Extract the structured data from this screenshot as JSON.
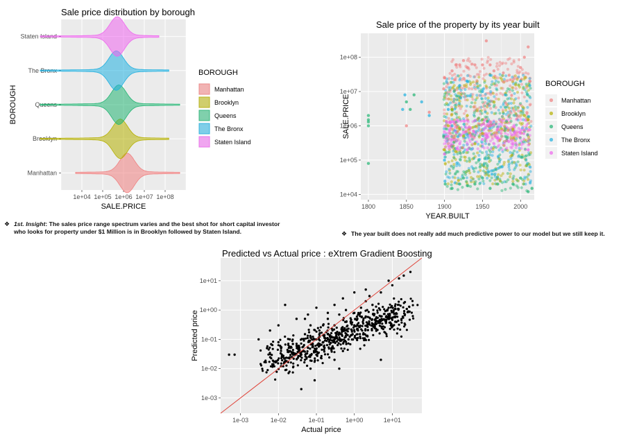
{
  "colors": {
    "Manhattan": "#f08080",
    "Brooklyn": "#b5b000",
    "Queens": "#22b573",
    "The Bronx": "#20b0e0",
    "Staten Island": "#ee66ee",
    "panel_bg": "#ebebeb",
    "line": "#e0443a"
  },
  "chart_data": [
    {
      "type": "violin",
      "title": "Sale price distribution by borough",
      "xlabel": "SALE.PRICE",
      "ylabel": "BOROUGH",
      "x_scale": "log10",
      "xlim": [
        1000,
        1000000000
      ],
      "x_ticks": [
        "1e+04",
        "1e+05",
        "1e+06",
        "1e+07",
        "1e+08"
      ],
      "categories": [
        "Manhattan",
        "Brooklyn",
        "Queens",
        "The Bronx",
        "Staten Island"
      ],
      "legend_title": "BOROUGH",
      "legend": [
        "Manhattan",
        "Brooklyn",
        "Queens",
        "The Bronx",
        "Staten Island"
      ],
      "legend_position": "right",
      "series": [
        {
          "name": "Manhattan",
          "range": [
            5000,
            500000000
          ],
          "peak": 1500000
        },
        {
          "name": "Brooklyn",
          "range": [
            100,
            150000000
          ],
          "peak": 700000
        },
        {
          "name": "Queens",
          "range": [
            100,
            500000000
          ],
          "peak": 600000
        },
        {
          "name": "The Bronx",
          "range": [
            100,
            150000000
          ],
          "peak": 450000
        },
        {
          "name": "Staten Island",
          "range": [
            100,
            50000000
          ],
          "peak": 500000
        }
      ]
    },
    {
      "type": "scatter",
      "title": "Sale price of the property by its year built",
      "xlabel": "YEAR.BUILT",
      "ylabel": "SALE.PRICE",
      "y_scale": "log10",
      "xlim": [
        1790,
        2018
      ],
      "ylim": [
        7000,
        500000000
      ],
      "x_ticks": [
        "1800",
        "1850",
        "1900",
        "1950",
        "2000"
      ],
      "y_ticks": [
        "1e+04",
        "1e+05",
        "1e+06",
        "1e+07",
        "1e+08"
      ],
      "legend_title": "BOROUGH",
      "legend": [
        "Manhattan",
        "Brooklyn",
        "Queens",
        "The Bronx",
        "Staten Island"
      ],
      "legend_position": "right",
      "series": [
        {
          "name": "Manhattan",
          "x": [
            1850,
            1880,
            1899,
            1900,
            1910,
            1915,
            1920,
            1925,
            1930,
            1940,
            1950,
            1955,
            1960,
            1965,
            1985,
            2000,
            2005,
            2010,
            2012
          ],
          "y": [
            1000000,
            2500000,
            12000000,
            25000000,
            40000000,
            60000000,
            60000000,
            80000000,
            50000000,
            60000000,
            60000000,
            300000000,
            60000000,
            40000000,
            30000000,
            50000000,
            100000000,
            200000000,
            20000000
          ]
        },
        {
          "name": "Brooklyn",
          "x": [
            1900,
            1905,
            1910,
            1920,
            1925,
            1930,
            1940,
            1950,
            1960,
            1990,
            2005,
            2010
          ],
          "y": [
            200000,
            1000000,
            3000000,
            800000,
            500000,
            2000000,
            300000,
            600000,
            1000000,
            800000,
            2000000,
            1500000
          ]
        },
        {
          "name": "Queens",
          "x": [
            1800,
            1800,
            1800,
            1800,
            1800,
            1850,
            1855,
            1860,
            1899,
            1901,
            1910,
            1920,
            1925,
            1930,
            1940,
            1950,
            1960,
            1970,
            1990,
            2000,
            2010,
            2015
          ],
          "y": [
            80000,
            1000000,
            1500000,
            2000000,
            1300000,
            5000000,
            3000000,
            8000000,
            500000,
            20000,
            15000,
            20000,
            30000,
            18000,
            20000,
            30000,
            15000,
            20000,
            20000,
            30000,
            12000,
            15000
          ]
        },
        {
          "name": "The Bronx",
          "x": [
            1845,
            1848,
            1870,
            1880,
            1900,
            1905,
            1910,
            1920,
            1930,
            1950,
            1960,
            1980,
            2000,
            2012
          ],
          "y": [
            3000000,
            8000000,
            5000000,
            2000000,
            100000,
            3000000,
            1000000,
            15000000,
            20000000,
            10000000,
            30000000,
            8000000,
            20000000,
            15000000
          ]
        },
        {
          "name": "Staten Island",
          "x": [
            1900,
            1905,
            1920,
            1930,
            1950,
            1960,
            1970,
            1990,
            2000,
            2010
          ],
          "y": [
            150000,
            500000,
            300000,
            200000,
            400000,
            1000000,
            800000,
            300000,
            600000,
            200000
          ]
        }
      ]
    },
    {
      "type": "scatter",
      "title": "Predicted vs Actual price : eXtrem Gradient Boosting",
      "xlabel": "Actual price",
      "ylabel": "Predicted price",
      "x_scale": "log10",
      "y_scale": "log10",
      "xlim": [
        0.0003,
        60
      ],
      "ylim": [
        0.0003,
        60
      ],
      "x_ticks": [
        "1e-03",
        "1e-02",
        "1e-01",
        "1e+00",
        "1e+01"
      ],
      "y_ticks": [
        "1e-03",
        "1e-02",
        "1e-01",
        "1e+00",
        "1e+01"
      ],
      "reference_line": "y = x",
      "series": [
        {
          "x": [
            0.0005,
            0.0007,
            0.003,
            0.005,
            0.006,
            0.01,
            0.015,
            0.02,
            0.03,
            0.04,
            0.05,
            0.07,
            0.08,
            0.1,
            0.12,
            0.15,
            0.2,
            0.25,
            0.3,
            0.4,
            0.5,
            0.6,
            0.8,
            1.0,
            1.5,
            2,
            3,
            5,
            8,
            10,
            15,
            20,
            30,
            0.02,
            0.03,
            0.05,
            0.07,
            0.1,
            0.15,
            0.2,
            0.3,
            0.5,
            0.7,
            1,
            2,
            0.05,
            0.1,
            0.3,
            0.5,
            1,
            2,
            3,
            0.06,
            0.09,
            0.4,
            0.9,
            5,
            12,
            0.01,
            0.04,
            0.2,
            0.6,
            1.2,
            2.5
          ],
          "y": [
            0.03,
            0.03,
            0.1,
            0.05,
            0.2,
            0.3,
            1.5,
            0.1,
            0.5,
            0.03,
            0.02,
            0.3,
            0.06,
            0.1,
            0.2,
            0.08,
            0.5,
            0.05,
            0.3,
            0.7,
            0.2,
            1.0,
            0.4,
            0.8,
            1.2,
            2,
            1.5,
            4,
            10,
            7,
            12,
            15,
            20,
            0.04,
            0.06,
            0.15,
            0.01,
            0.03,
            0.3,
            0.8,
            1.5,
            2.5,
            0.1,
            0.3,
            0.6,
            0.5,
            1.2,
            0.02,
            0.04,
            4,
            5,
            0.3,
            0.7,
            0.004,
            0.01,
            0.15,
            0.02,
            0.4,
            0.08,
            0.002,
            0.15,
            0.2,
            0.5,
            3
          ]
        }
      ]
    }
  ],
  "notes": {
    "bullet": "❖",
    "left_lead": "1st. Insight",
    "left_body": ": The sales price range spectrum varies and the best shot for short capital investor who looks for property under $1 Million is in Brooklyn followed by Staten Island.",
    "right_body": "The year built does not really add much predictive power to our model but we still keep it."
  }
}
